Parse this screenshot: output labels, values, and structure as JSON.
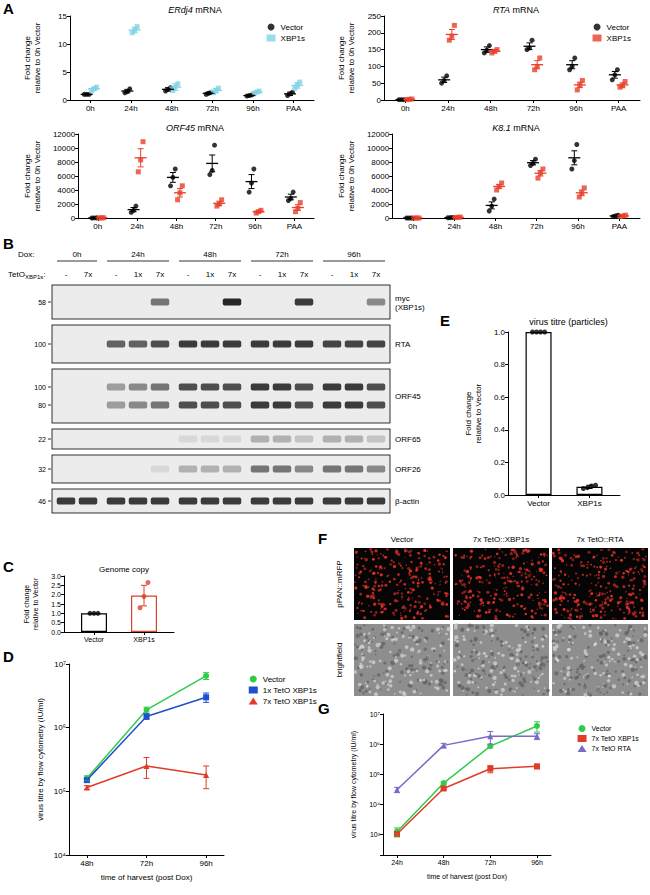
{
  "chart_data": [
    {
      "panel": "A",
      "type": "dot",
      "title": "ERdj4 mRNA",
      "y_label": "Fold change\nrelative to 0h Vector",
      "categories": [
        "0h",
        "24h",
        "48h",
        "72h",
        "96h",
        "PAA"
      ],
      "ylim": [
        0,
        15
      ],
      "yticks": [
        0,
        5,
        10,
        15
      ],
      "legend": "top-right",
      "series": [
        {
          "name": "Vector",
          "color": "#000000",
          "marker": "circle",
          "values": [
            1.0,
            1.6,
            1.9,
            1.2,
            0.8,
            1.1
          ],
          "error": [
            0.05,
            0.3,
            0.3,
            0.2,
            0.15,
            0.3
          ],
          "points": [
            [
              1.0,
              1.0,
              1.0
            ],
            [
              1.3,
              1.5,
              2.0
            ],
            [
              1.6,
              1.9,
              2.2
            ],
            [
              1.0,
              1.2,
              1.4
            ],
            [
              0.7,
              0.8,
              0.9
            ],
            [
              0.8,
              1.1,
              1.4
            ]
          ]
        },
        {
          "name": "XBP1s",
          "color": "#7fd3e6",
          "marker": "square",
          "values": [
            2.0,
            12.5,
            2.3,
            1.7,
            1.4,
            2.6
          ],
          "error": [
            0.3,
            0.5,
            0.6,
            0.4,
            0.2,
            0.5
          ],
          "points": [
            [
              1.6,
              2.0,
              2.3
            ],
            [
              12.0,
              12.5,
              13.1
            ],
            [
              1.7,
              2.3,
              2.9
            ],
            [
              1.3,
              1.7,
              2.1
            ],
            [
              1.2,
              1.4,
              1.6
            ],
            [
              2.1,
              2.6,
              3.2
            ]
          ]
        }
      ]
    },
    {
      "type": "dot",
      "title": "RTA mRNA",
      "y_label": "Fold change\nrelative to 0h Vector",
      "categories": [
        "0h",
        "24h",
        "48h",
        "72h",
        "96h",
        "PAA"
      ],
      "ylim": [
        0,
        250
      ],
      "yticks": [
        0,
        50,
        100,
        150,
        200,
        250
      ],
      "legend": "top-right",
      "series": [
        {
          "name": "Vector",
          "color": "#000000",
          "marker": "circle",
          "values": [
            1,
            60,
            150,
            160,
            105,
            75
          ],
          "error": [
            0.5,
            8,
            8,
            10,
            12,
            10
          ],
          "points": [
            [
              1,
              1,
              1
            ],
            [
              50,
              58,
              72
            ],
            [
              140,
              148,
              162
            ],
            [
              150,
              155,
              178
            ],
            [
              90,
              100,
              125
            ],
            [
              60,
              75,
              90
            ]
          ]
        },
        {
          "name": "XBP1s",
          "color": "#e8402a",
          "marker": "square",
          "values": [
            2,
            195,
            145,
            105,
            45,
            45
          ],
          "error": [
            1,
            15,
            5,
            12,
            8,
            6
          ],
          "points": [
            [
              1,
              2,
              3
            ],
            [
              178,
              190,
              222
            ],
            [
              140,
              145,
              150
            ],
            [
              90,
              100,
              125
            ],
            [
              30,
              45,
              58
            ],
            [
              38,
              42,
              55
            ]
          ]
        }
      ]
    },
    {
      "type": "dot",
      "title": "ORF45 mRNA",
      "y_label": "Fold change\nrelative to 0h Vector",
      "categories": [
        "0h",
        "24h",
        "48h",
        "72h",
        "96h",
        "PAA"
      ],
      "ylim": [
        0,
        12000
      ],
      "yticks": [
        0,
        2000,
        4000,
        6000,
        8000,
        10000,
        12000
      ],
      "series": [
        {
          "color": "#000000",
          "marker": "circle",
          "values": [
            10,
            1200,
            5800,
            7800,
            5200,
            3000
          ],
          "error": [
            5,
            300,
            700,
            1200,
            1000,
            400
          ],
          "points": [
            [
              5,
              10,
              15
            ],
            [
              800,
              1100,
              1700
            ],
            [
              4600,
              5800,
              7000
            ],
            [
              6200,
              6800,
              10400
            ],
            [
              3700,
              5000,
              7000
            ],
            [
              2500,
              2800,
              3700
            ]
          ]
        },
        {
          "color": "#e8402a",
          "marker": "square",
          "values": [
            20,
            8600,
            3600,
            2100,
            900,
            1500
          ],
          "error": [
            10,
            1300,
            600,
            300,
            150,
            400
          ],
          "points": [
            [
              10,
              20,
              30
            ],
            [
              6600,
              8300,
              10900
            ],
            [
              2600,
              3600,
              4600
            ],
            [
              1700,
              2000,
              2600
            ],
            [
              700,
              900,
              1100
            ],
            [
              900,
              1400,
              2200
            ]
          ]
        }
      ]
    },
    {
      "type": "dot",
      "title": "K8.1 mRNA",
      "y_label": "Fold change\nrelative to 0h Vector",
      "categories": [
        "0h",
        "24h",
        "48h",
        "72h",
        "96h",
        "PAA"
      ],
      "ylim": [
        0,
        12000
      ],
      "yticks": [
        0,
        2000,
        4000,
        6000,
        8000,
        10000,
        12000
      ],
      "series": [
        {
          "color": "#000000",
          "marker": "circle",
          "values": [
            0,
            50,
            1800,
            7900,
            8600,
            300
          ],
          "error": [
            0,
            20,
            500,
            300,
            1000,
            100
          ],
          "points": [
            [
              0,
              0,
              0
            ],
            [
              30,
              50,
              70
            ],
            [
              1000,
              1700,
              2700
            ],
            [
              7500,
              7800,
              8400
            ],
            [
              7000,
              8200,
              10500
            ],
            [
              200,
              300,
              400
            ]
          ]
        },
        {
          "color": "#e8402a",
          "marker": "square",
          "values": [
            0,
            100,
            4500,
            6400,
            3600,
            300
          ],
          "error": [
            0,
            30,
            300,
            400,
            400,
            100
          ],
          "points": [
            [
              0,
              0,
              0
            ],
            [
              70,
              100,
              130
            ],
            [
              4000,
              4500,
              5000
            ],
            [
              5700,
              6400,
              7000
            ],
            [
              3000,
              3600,
              4300
            ],
            [
              200,
              300,
              400
            ]
          ]
        }
      ]
    },
    {
      "panel": "C",
      "type": "bar",
      "title": "Genome copy",
      "y_label": "Fold change\nrelative to Vector",
      "categories": [
        "Vector",
        "XBP1s"
      ],
      "values": [
        1.0,
        1.95
      ],
      "error": [
        0,
        0.55
      ],
      "points": [
        [
          1,
          1,
          1
        ],
        [
          1.3,
          1.9,
          2.65
        ]
      ],
      "colors": [
        "#000000",
        "#d9432b"
      ],
      "ylim": [
        0,
        3
      ],
      "yticks": [
        {
          "value": 0,
          "label": "0.0"
        },
        {
          "value": 0.5,
          "label": "0.5"
        },
        {
          "value": 1,
          "label": "1.0"
        },
        {
          "value": 1.5,
          "label": "1.5"
        },
        {
          "value": 2,
          "label": "2.0"
        },
        {
          "value": 2.5,
          "label": "2.5"
        },
        {
          "value": 3,
          "label": "3.0"
        }
      ]
    },
    {
      "panel": "D",
      "type": "line",
      "x_label": "time of harvest (post Dox)",
      "y_label": "virus titre by flow cytometry (IU/ml)",
      "categories": [
        "48h",
        "72h",
        "96h"
      ],
      "log": "y",
      "ylim": [
        10000,
        10000000
      ],
      "yticks": [
        {
          "value": 10000,
          "label": "10⁴"
        },
        {
          "value": 100000,
          "label": "10⁵"
        },
        {
          "value": 1000000,
          "label": "10⁶"
        },
        {
          "value": 10000000,
          "label": "10⁷"
        }
      ],
      "legend": "right",
      "series": [
        {
          "name": "Vector",
          "color": "#2fcc4a",
          "marker": "circle",
          "values": [
            160000,
            1900000,
            6500000
          ],
          "error": [
            15000,
            200000,
            800000
          ]
        },
        {
          "name": "1x TetO XBP1s",
          "color": "#1f4fd1",
          "marker": "square",
          "values": [
            150000,
            1500000,
            3000000
          ],
          "error": [
            10000,
            150000,
            500000
          ]
        },
        {
          "name": "7x TetO XBP1s",
          "color": "#e03c28",
          "marker": "triangle",
          "values": [
            115000,
            250000,
            180000
          ],
          "error": [
            8000,
            90000,
            70000
          ]
        }
      ]
    },
    {
      "panel": "E",
      "type": "bar",
      "title": "virus titre (particles)",
      "y_label": "Fold change\nrelative to Vector",
      "categories": [
        "Vector",
        "XBP1s"
      ],
      "values": [
        1.0,
        0.05
      ],
      "error": [
        0,
        0.01
      ],
      "points": [
        [
          1,
          1,
          1,
          1
        ],
        [
          0.04,
          0.045,
          0.055,
          0.06
        ]
      ],
      "colors": [
        "#000000",
        "#000000"
      ],
      "ylim": [
        0,
        1
      ],
      "yticks": [
        {
          "value": 0,
          "label": "0.0"
        },
        {
          "value": 0.2,
          "label": "0.2"
        },
        {
          "value": 0.4,
          "label": "0.4"
        },
        {
          "value": 0.6,
          "label": "0.6"
        },
        {
          "value": 0.8,
          "label": "0.8"
        },
        {
          "value": 1,
          "label": "1.0"
        }
      ]
    },
    {
      "panel": "G",
      "type": "line",
      "x_label": "time of harvest (post Dox)",
      "y_label": "virus titre by flow cytometry (IU/ml)",
      "categories": [
        "24h",
        "48h",
        "72h",
        "96h"
      ],
      "log": "y",
      "ylim": [
        200,
        10000000
      ],
      "yticks": [
        {
          "value": 1000,
          "label": "10³"
        },
        {
          "value": 10000,
          "label": "10⁴"
        },
        {
          "value": 100000,
          "label": "10⁵"
        },
        {
          "value": 1000000,
          "label": "10⁶"
        },
        {
          "value": 10000000,
          "label": "10⁷"
        }
      ],
      "legend": "right",
      "series": [
        {
          "name": "Vector",
          "color": "#2fcc4a",
          "marker": "circle",
          "values": [
            1200,
            50000,
            850000,
            4000000
          ],
          "error": [
            400,
            5000,
            100000,
            1500000
          ]
        },
        {
          "name": "7x TetO XBP1s",
          "color": "#e03c28",
          "marker": "square",
          "values": [
            1000,
            33000,
            150000,
            180000
          ],
          "error": [
            150,
            3000,
            40000,
            30000
          ]
        },
        {
          "name": "7x TetO RTA",
          "color": "#7b68c8",
          "marker": "triangle",
          "values": [
            30000,
            900000,
            1800000,
            1800000
          ],
          "error": [
            6000,
            150000,
            800000,
            400000
          ]
        }
      ]
    }
  ],
  "blot": {
    "panel": "B",
    "dox_label": "Dox:",
    "construct_label": "TetO",
    "construct_sub": "XBP1s",
    "construct_suffix": ":",
    "groups": [
      {
        "label": "0h",
        "lanes": [
          "-",
          "7x"
        ]
      },
      {
        "label": "24h",
        "lanes": [
          "-",
          "1x",
          "7x"
        ]
      },
      {
        "label": "48h",
        "lanes": [
          "-",
          "1x",
          "7x"
        ]
      },
      {
        "label": "72h",
        "lanes": [
          "-",
          "1x",
          "7x"
        ]
      },
      {
        "label": "96h",
        "lanes": [
          "-",
          "1x",
          "7x"
        ]
      }
    ],
    "rows": [
      {
        "label": "myc\n(XBP1s)",
        "markers": [
          58
        ],
        "bands": [
          0,
          0,
          0,
          0,
          0.6,
          0,
          0,
          1,
          0,
          0,
          0.9,
          0,
          0,
          0.5
        ]
      },
      {
        "label": "RTA",
        "markers": [
          100
        ],
        "bands": [
          0,
          0,
          0.7,
          0.7,
          0.8,
          0.9,
          0.9,
          0.9,
          0.9,
          0.9,
          0.9,
          0.85,
          0.85,
          0.85
        ]
      },
      {
        "label": "ORF45",
        "markers": [
          100,
          80
        ],
        "bands": [
          0,
          0,
          0.4,
          0.5,
          0.6,
          0.8,
          0.8,
          0.8,
          0.9,
          0.9,
          0.8,
          0.9,
          0.9,
          0.8
        ]
      },
      {
        "label": "ORF65",
        "markers": [
          22
        ],
        "bands": [
          0,
          0,
          0,
          0,
          0,
          0.1,
          0.1,
          0.1,
          0.3,
          0.3,
          0.2,
          0.3,
          0.3,
          0.2
        ]
      },
      {
        "label": "ORF26",
        "markers": [
          32
        ],
        "bands": [
          0,
          0,
          0,
          0,
          0.1,
          0.3,
          0.3,
          0.3,
          0.6,
          0.6,
          0.5,
          0.6,
          0.6,
          0.5
        ]
      },
      {
        "label": "β-actin",
        "markers": [
          46
        ],
        "bands": [
          0.9,
          0.9,
          0.9,
          0.9,
          0.9,
          0.9,
          0.9,
          0.9,
          0.9,
          0.9,
          0.9,
          0.9,
          0.9,
          0.9
        ]
      }
    ]
  },
  "images": {
    "panel": "F",
    "columns": [
      "Vector",
      "7x TetO::XBP1s",
      "7x TetO::RTA"
    ],
    "rows": [
      "pPAN::mRFP",
      "brightfield"
    ]
  }
}
